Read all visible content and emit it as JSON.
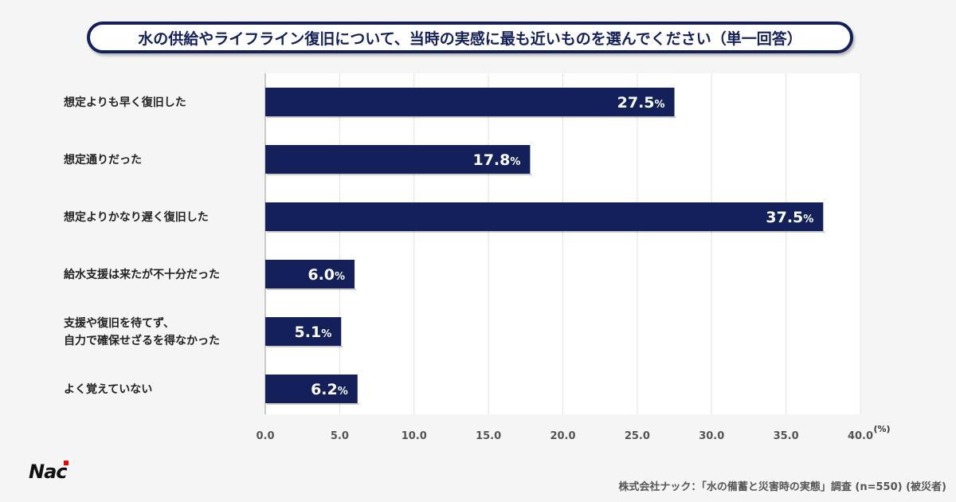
{
  "chart_data": {
    "type": "bar",
    "orientation": "horizontal",
    "title": "水の供給やライフライン復旧について、当時の実感に最も近いものを選んでください（単一回答）",
    "categories": [
      "想定よりも早く復旧した",
      "想定通りだった",
      "想定よりかなり遅く復旧した",
      "給水支援は来たが不十分だった",
      "支援や復旧を待てず、\n自力で確保せざるを得なかった",
      "よく覚えていない"
    ],
    "values": [
      27.5,
      17.8,
      37.5,
      6.0,
      5.1,
      6.2
    ],
    "value_labels": [
      "27.5",
      "17.8",
      "37.5",
      "6.0",
      "5.1",
      "6.2"
    ],
    "unit": "%",
    "xlim": [
      0,
      40
    ],
    "xticks": [
      "0.0",
      "5.0",
      "10.0",
      "15.0",
      "20.0",
      "25.0",
      "30.0",
      "35.0",
      "40.0"
    ],
    "xlabel": "(%)",
    "grid": true,
    "bar_color": "#14205a"
  },
  "logo": "NAC",
  "source": "株式会社ナック：「水の備蓄と災害時の実態」調査 (n=550) (被災者)"
}
